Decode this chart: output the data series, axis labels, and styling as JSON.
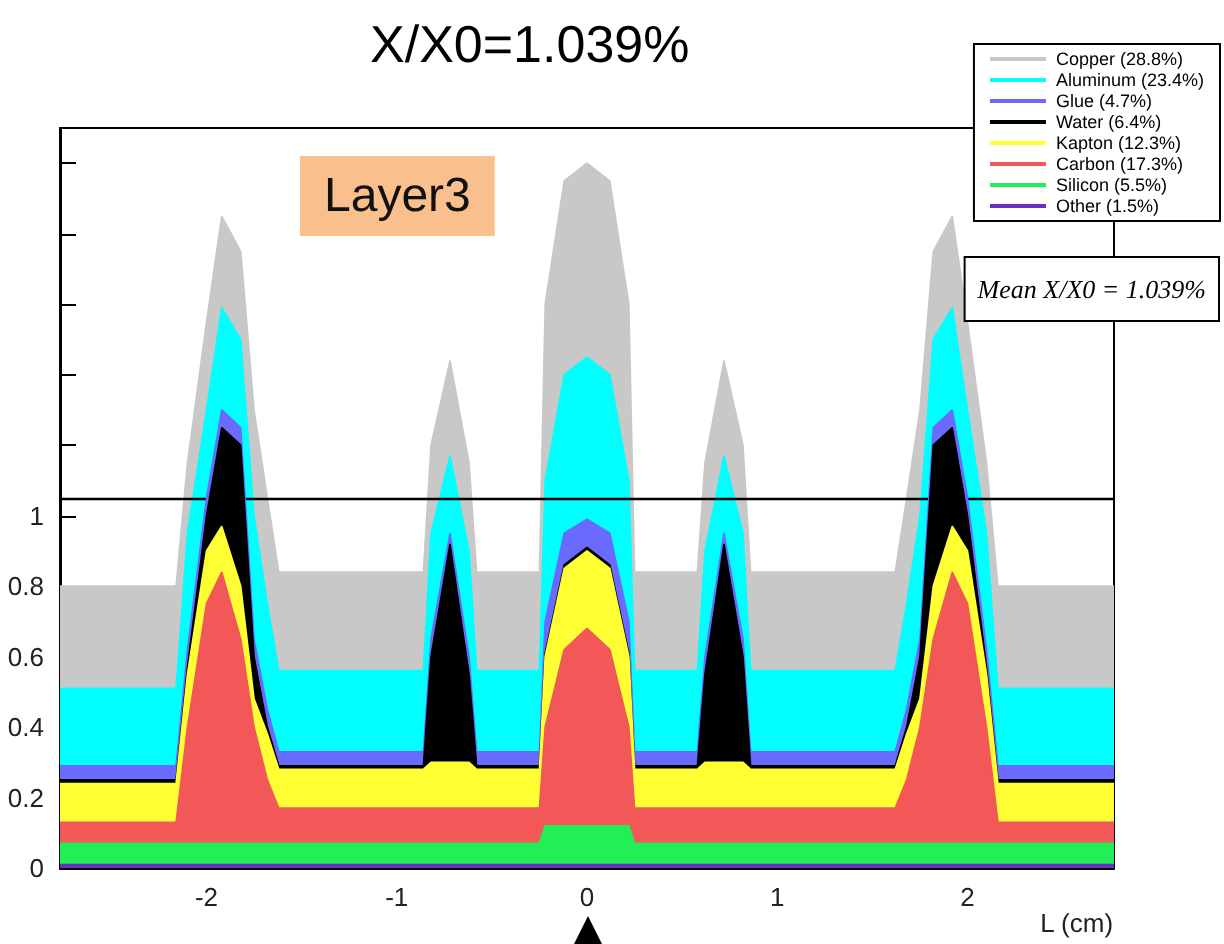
{
  "chart_data": {
    "type": "area",
    "title": "X/X0=1.039%",
    "xlabel": "L (cm)",
    "stacked": true,
    "annotations": [
      "Layer3",
      "Mean X/X0 = 1.039%"
    ],
    "x": [
      -2.77,
      -2.16,
      -2.1,
      -2.0,
      -1.92,
      -1.82,
      -1.75,
      -1.68,
      -1.62,
      -0.86,
      -0.82,
      -0.72,
      -0.62,
      -0.58,
      -0.25,
      -0.22,
      -0.12,
      0,
      0.12,
      0.22,
      0.25,
      0.58,
      0.62,
      0.72,
      0.82,
      0.86,
      1.62,
      1.68,
      1.75,
      1.82,
      1.92,
      2.0,
      2.1,
      2.16,
      2.77
    ],
    "series": [
      {
        "name": "Other (1.5%)",
        "color": "#6a2fbf",
        "values": [
          0.01,
          0.01,
          0.01,
          0.01,
          0.01,
          0.01,
          0.01,
          0.01,
          0.01,
          0.01,
          0.01,
          0.01,
          0.01,
          0.01,
          0.01,
          0.01,
          0.01,
          0.01,
          0.01,
          0.01,
          0.01,
          0.01,
          0.01,
          0.01,
          0.01,
          0.01,
          0.01,
          0.01,
          0.01,
          0.01,
          0.01,
          0.01,
          0.01,
          0.01,
          0.01
        ]
      },
      {
        "name": "Silicon (5.5%)",
        "color": "#22ee55",
        "values": [
          0.06,
          0.06,
          0.06,
          0.06,
          0.06,
          0.06,
          0.06,
          0.06,
          0.06,
          0.06,
          0.06,
          0.06,
          0.06,
          0.06,
          0.06,
          0.11,
          0.11,
          0.11,
          0.11,
          0.11,
          0.06,
          0.06,
          0.06,
          0.06,
          0.06,
          0.06,
          0.06,
          0.06,
          0.06,
          0.06,
          0.06,
          0.06,
          0.06,
          0.06,
          0.06
        ]
      },
      {
        "name": "Carbon (17.3%)",
        "color": "#f25858",
        "values": [
          0.06,
          0.06,
          0.33,
          0.68,
          0.77,
          0.58,
          0.33,
          0.18,
          0.1,
          0.1,
          0.1,
          0.1,
          0.1,
          0.1,
          0.1,
          0.28,
          0.5,
          0.56,
          0.5,
          0.28,
          0.1,
          0.1,
          0.1,
          0.1,
          0.1,
          0.1,
          0.1,
          0.18,
          0.33,
          0.58,
          0.77,
          0.68,
          0.33,
          0.06,
          0.06
        ]
      },
      {
        "name": "Kapton (12.3%)",
        "color": "#ffff33",
        "values": [
          0.11,
          0.11,
          0.15,
          0.15,
          0.13,
          0.15,
          0.08,
          0.13,
          0.11,
          0.11,
          0.13,
          0.13,
          0.13,
          0.11,
          0.11,
          0.2,
          0.23,
          0.22,
          0.23,
          0.2,
          0.11,
          0.11,
          0.13,
          0.13,
          0.13,
          0.11,
          0.11,
          0.13,
          0.08,
          0.15,
          0.13,
          0.15,
          0.15,
          0.11,
          0.11
        ]
      },
      {
        "name": "Water (6.4%)",
        "color": "#000000",
        "values": [
          0.01,
          0.01,
          0.02,
          0.1,
          0.28,
          0.4,
          0.12,
          0.02,
          0.01,
          0.01,
          0.3,
          0.62,
          0.25,
          0.01,
          0.01,
          0.01,
          0.01,
          0.01,
          0.01,
          0.01,
          0.01,
          0.01,
          0.25,
          0.62,
          0.3,
          0.01,
          0.01,
          0.02,
          0.12,
          0.4,
          0.28,
          0.1,
          0.02,
          0.01,
          0.01
        ]
      },
      {
        "name": "Glue (4.7%)",
        "color": "#6a6aff",
        "values": [
          0.04,
          0.04,
          0.05,
          0.05,
          0.05,
          0.05,
          0.05,
          0.05,
          0.04,
          0.04,
          0.05,
          0.03,
          0.05,
          0.04,
          0.04,
          0.09,
          0.09,
          0.08,
          0.09,
          0.09,
          0.04,
          0.04,
          0.05,
          0.03,
          0.05,
          0.04,
          0.04,
          0.05,
          0.05,
          0.05,
          0.05,
          0.05,
          0.05,
          0.04,
          0.04
        ]
      },
      {
        "name": "Aluminum (23.4%)",
        "color": "#00ffff",
        "values": [
          0.22,
          0.22,
          0.33,
          0.25,
          0.29,
          0.25,
          0.35,
          0.3,
          0.23,
          0.23,
          0.3,
          0.22,
          0.3,
          0.23,
          0.23,
          0.4,
          0.45,
          0.46,
          0.45,
          0.4,
          0.23,
          0.23,
          0.3,
          0.22,
          0.3,
          0.23,
          0.23,
          0.3,
          0.35,
          0.25,
          0.29,
          0.25,
          0.33,
          0.22,
          0.22
        ]
      },
      {
        "name": "Copper (28.8%)",
        "color": "#c8c8c8",
        "values": [
          0.29,
          0.29,
          0.2,
          0.25,
          0.26,
          0.25,
          0.3,
          0.3,
          0.28,
          0.28,
          0.25,
          0.27,
          0.25,
          0.28,
          0.28,
          0.5,
          0.55,
          0.55,
          0.55,
          0.5,
          0.28,
          0.28,
          0.25,
          0.27,
          0.25,
          0.28,
          0.28,
          0.3,
          0.3,
          0.25,
          0.26,
          0.25,
          0.2,
          0.29,
          0.29
        ]
      }
    ],
    "xlim": [
      -2.77,
      2.77
    ],
    "xticks": [
      -2,
      -1,
      0,
      1,
      2
    ],
    "ylim": [
      0,
      2.1
    ],
    "yticks": [
      0,
      0.2,
      0.4,
      0.6,
      0.8,
      1,
      {
        "value": 1.2,
        "label": null
      },
      {
        "value": 1.4,
        "label": null
      },
      {
        "value": 1.6,
        "label": null
      },
      {
        "value": 1.8,
        "label": null
      },
      {
        "value": 2,
        "label": null
      }
    ],
    "ref_lines": [
      {
        "axis": "y",
        "value": 1.05,
        "color": "#000000"
      }
    ],
    "legend": "top right"
  }
}
